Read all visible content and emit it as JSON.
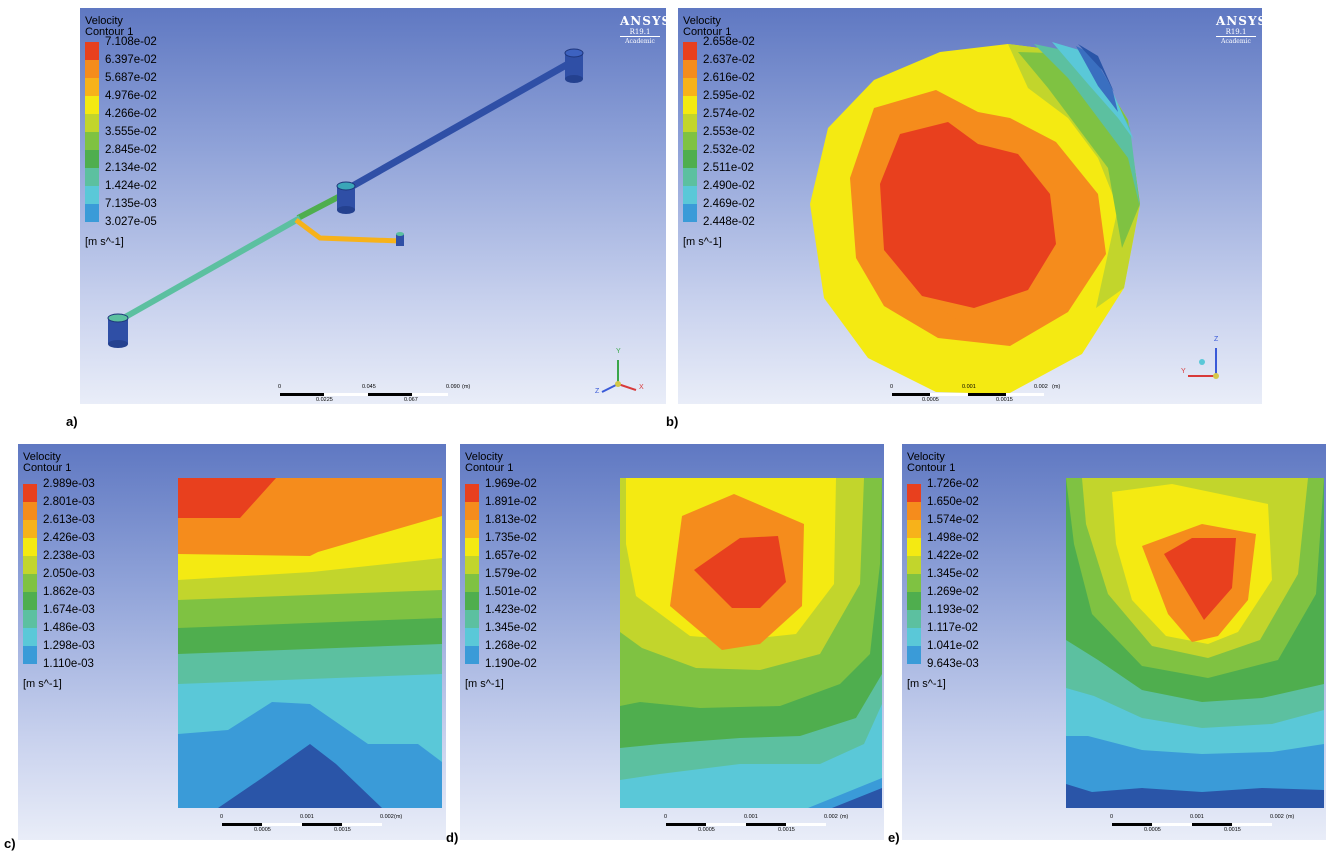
{
  "panels": {
    "a": {
      "label": "a)",
      "title_line1": "Velocity",
      "title_line2": "Contour 1",
      "unit": "[m s^-1]",
      "legend": [
        "7.108e-02",
        "6.397e-02",
        "5.687e-02",
        "4.976e-02",
        "4.266e-02",
        "3.555e-02",
        "2.845e-02",
        "2.134e-02",
        "1.424e-02",
        "7.135e-03",
        "3.027e-05"
      ],
      "brand": {
        "name": "ANSYS",
        "version": "R19.1",
        "edition": "Academic"
      },
      "scale_top": [
        "0",
        "0.045",
        "0.090",
        "(m)"
      ],
      "scale_bottom": [
        "0.0225",
        "0.067"
      ],
      "axes": {
        "y": "Y",
        "x": "X",
        "z": "Z"
      }
    },
    "b": {
      "label": "b)",
      "title_line1": "Velocity",
      "title_line2": "Contour 1",
      "unit": "[m s^-1]",
      "legend": [
        "2.658e-02",
        "2.637e-02",
        "2.616e-02",
        "2.595e-02",
        "2.574e-02",
        "2.553e-02",
        "2.532e-02",
        "2.511e-02",
        "2.490e-02",
        "2.469e-02",
        "2.448e-02"
      ],
      "brand": {
        "name": "ANSYS",
        "version": "R19.1",
        "edition": "Academic"
      },
      "scale_top": [
        "0",
        "0.001",
        "0.002",
        "(m)"
      ],
      "scale_bottom": [
        "0.0005",
        "0.0015"
      ],
      "axes": {
        "z": "Z",
        "y": "Y"
      }
    },
    "c": {
      "label": "c)",
      "title_line1": "Velocity",
      "title_line2": "Contour 1",
      "unit": "[m s^-1]",
      "legend": [
        "2.989e-03",
        "2.801e-03",
        "2.613e-03",
        "2.426e-03",
        "2.238e-03",
        "2.050e-03",
        "1.862e-03",
        "1.674e-03",
        "1.486e-03",
        "1.298e-03",
        "1.110e-03"
      ],
      "scale_top": [
        "0",
        "0.001",
        "0.002",
        "(m)"
      ],
      "scale_bottom": [
        "0.0005",
        "0.0015"
      ]
    },
    "d": {
      "label": "d)",
      "title_line1": "Velocity",
      "title_line2": "Contour 1",
      "unit": "[m s^-1]",
      "legend": [
        "1.969e-02",
        "1.891e-02",
        "1.813e-02",
        "1.735e-02",
        "1.657e-02",
        "1.579e-02",
        "1.501e-02",
        "1.423e-02",
        "1.345e-02",
        "1.268e-02",
        "1.190e-02"
      ],
      "scale_top": [
        "0",
        "0.001",
        "0.002",
        "(m)"
      ],
      "scale_bottom": [
        "0.0005",
        "0.0015"
      ]
    },
    "e": {
      "label": "e)",
      "title_line1": "Velocity",
      "title_line2": "Contour 1",
      "unit": "[m s^-1]",
      "legend": [
        "1.726e-02",
        "1.650e-02",
        "1.574e-02",
        "1.498e-02",
        "1.422e-02",
        "1.345e-02",
        "1.269e-02",
        "1.193e-02",
        "1.117e-02",
        "1.041e-02",
        "9.643e-03"
      ],
      "scale_top": [
        "0",
        "0.001",
        "0.002",
        "(m)"
      ],
      "scale_bottom": [
        "0.0005",
        "0.0015"
      ]
    }
  },
  "colormap": [
    "#e8401e",
    "#f58c1c",
    "#f7b21a",
    "#f4ea12",
    "#c2d52c",
    "#7fc242",
    "#4fae4e",
    "#5cc0a0",
    "#5ac8d8",
    "#3a9bd8",
    "#2a55a8"
  ]
}
